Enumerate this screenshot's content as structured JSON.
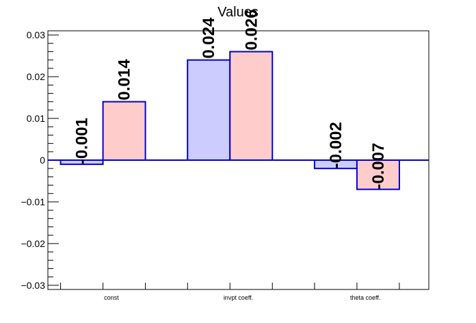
{
  "chart_data": {
    "type": "bar",
    "title": "Values",
    "categories": [
      "const",
      "invpt coeff.",
      "theta coeff."
    ],
    "series": [
      {
        "values": [
          -0.001,
          0.024,
          -0.002
        ],
        "labels": [
          "-0.001",
          "0.024",
          "-0.002"
        ],
        "fill": "#ccccff",
        "stroke": "#0000cc"
      },
      {
        "values": [
          0.014,
          0.026,
          -0.007
        ],
        "labels": [
          "0.014",
          "0.026",
          "-0.007"
        ],
        "fill": "#ffcccc",
        "stroke": "#0000cc"
      }
    ],
    "ylim": [
      -0.031,
      0.031
    ],
    "yticks": [
      -0.03,
      -0.02,
      -0.01,
      0,
      0.01,
      0.02,
      0.03
    ],
    "ytick_labels": [
      "−0.03",
      "−0.02",
      "−0.01",
      "0",
      "0.01",
      "0.02",
      "0.03"
    ],
    "xlabel": "",
    "ylabel": "",
    "grid": false,
    "legend": "none",
    "zero_line_color": "#0000cc"
  }
}
